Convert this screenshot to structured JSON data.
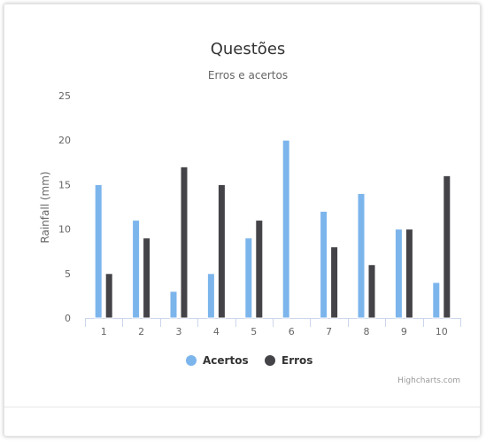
{
  "chart_data": {
    "type": "bar",
    "title": "Questões",
    "subtitle": "Erros e acertos",
    "xlabel": "",
    "ylabel": "Rainfall (mm)",
    "categories": [
      "1",
      "2",
      "3",
      "4",
      "5",
      "6",
      "7",
      "8",
      "9",
      "10"
    ],
    "y_ticks": [
      "0",
      "5",
      "10",
      "15",
      "20",
      "25"
    ],
    "ylim": [
      0,
      25
    ],
    "grid": false,
    "legend_position": "bottom-center",
    "series": [
      {
        "name": "Acertos",
        "color": "#7cb5ec",
        "values": [
          15,
          11,
          3,
          5,
          9,
          20,
          12,
          14,
          10,
          4
        ]
      },
      {
        "name": "Erros",
        "color": "#434348",
        "values": [
          5,
          9,
          17,
          15,
          11,
          0,
          8,
          6,
          10,
          16
        ]
      }
    ],
    "credits": "Highcharts.com"
  }
}
